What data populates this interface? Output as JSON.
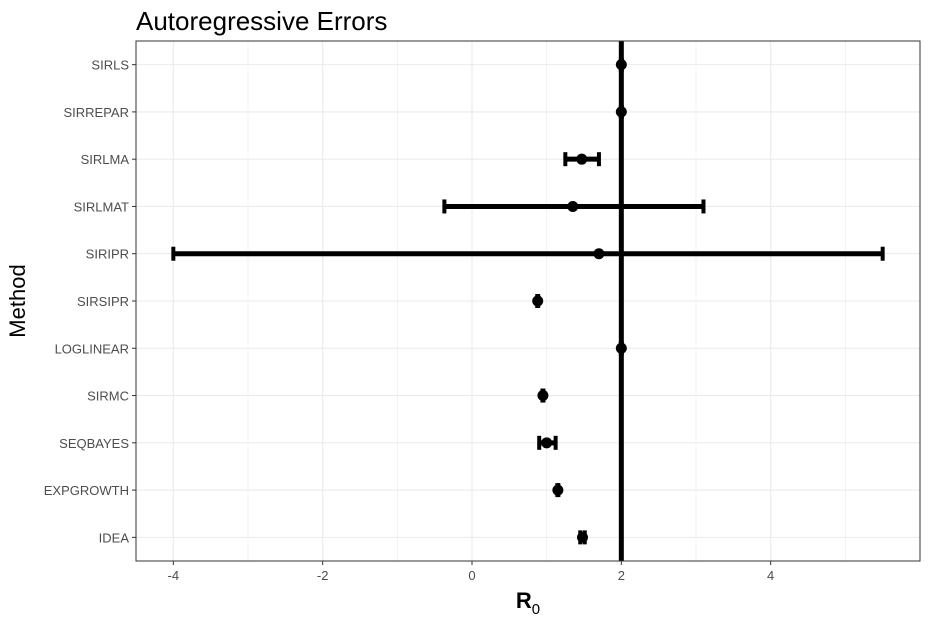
{
  "chart_data": {
    "type": "errorbar",
    "title": "Autoregressive Errors",
    "xlabel": "R",
    "xlabel_subscript": "0",
    "ylabel": "Method",
    "xlim": [
      -4.5,
      6.0
    ],
    "xticks": [
      -4,
      -2,
      0,
      2,
      4
    ],
    "reference_line": 2,
    "grid": true,
    "categories": [
      "SIRLS",
      "SIRREPAR",
      "SIRLMA",
      "SIRLMAT",
      "SIRIPR",
      "SIRSIPR",
      "LOGLINEAR",
      "SIRMC",
      "SEQBAYES",
      "EXPGROWTH",
      "IDEA"
    ],
    "points": [
      {
        "method": "SIRLS",
        "estimate": 2.0,
        "lower": 2.0,
        "upper": 2.0
      },
      {
        "method": "SIRREPAR",
        "estimate": 2.0,
        "lower": 2.0,
        "upper": 2.0
      },
      {
        "method": "SIRLMA",
        "estimate": 1.47,
        "lower": 1.25,
        "upper": 1.7
      },
      {
        "method": "SIRLMAT",
        "estimate": 1.35,
        "lower": -0.37,
        "upper": 3.1
      },
      {
        "method": "SIRIPR",
        "estimate": 1.7,
        "lower": -4.0,
        "upper": 5.5
      },
      {
        "method": "SIRSIPR",
        "estimate": 0.88,
        "lower": 0.88,
        "upper": 0.88
      },
      {
        "method": "LOGLINEAR",
        "estimate": 2.0,
        "lower": 2.0,
        "upper": 2.0
      },
      {
        "method": "SIRMC",
        "estimate": 0.95,
        "lower": 0.95,
        "upper": 0.95
      },
      {
        "method": "SEQBAYES",
        "estimate": 1.0,
        "lower": 0.9,
        "upper": 1.12
      },
      {
        "method": "EXPGROWTH",
        "estimate": 1.15,
        "lower": 1.15,
        "upper": 1.15
      },
      {
        "method": "IDEA",
        "estimate": 1.48,
        "lower": 1.45,
        "upper": 1.51
      }
    ]
  },
  "colors": {
    "marks": "#000000",
    "grid": "#ebebeb",
    "panel_border": "#333333",
    "tick_text": "#4d4d4d"
  }
}
